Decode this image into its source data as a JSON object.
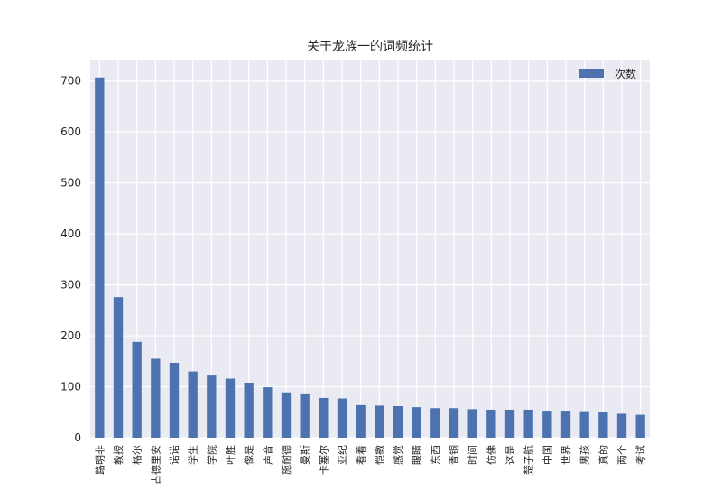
{
  "chart_data": {
    "type": "bar",
    "title": "关于龙族一的词频统计",
    "xlabel": "",
    "ylabel": "",
    "categories": [
      "路明非",
      "教授",
      "格尔",
      "古德里安",
      "诺诺",
      "学生",
      "学院",
      "叶胜",
      "像是",
      "声音",
      "施耐德",
      "曼斯",
      "卡塞尔",
      "亚纪",
      "看着",
      "恺撒",
      "感觉",
      "眼睛",
      "东西",
      "青铜",
      "时间",
      "仿佛",
      "这是",
      "楚子航",
      "中国",
      "世界",
      "男孩",
      "真的",
      "两个",
      "考试"
    ],
    "series": [
      {
        "name": "次数",
        "color": "#4c72b0",
        "values": [
          707,
          276,
          188,
          155,
          147,
          130,
          122,
          116,
          108,
          99,
          89,
          87,
          78,
          77,
          64,
          63,
          62,
          60,
          58,
          58,
          56,
          55,
          55,
          55,
          53,
          53,
          52,
          51,
          47,
          45
        ]
      }
    ],
    "yticks": [
      0,
      100,
      200,
      300,
      400,
      500,
      600,
      700
    ],
    "ylim": [
      0,
      742
    ],
    "grid": true,
    "legend_position": "top-right"
  }
}
